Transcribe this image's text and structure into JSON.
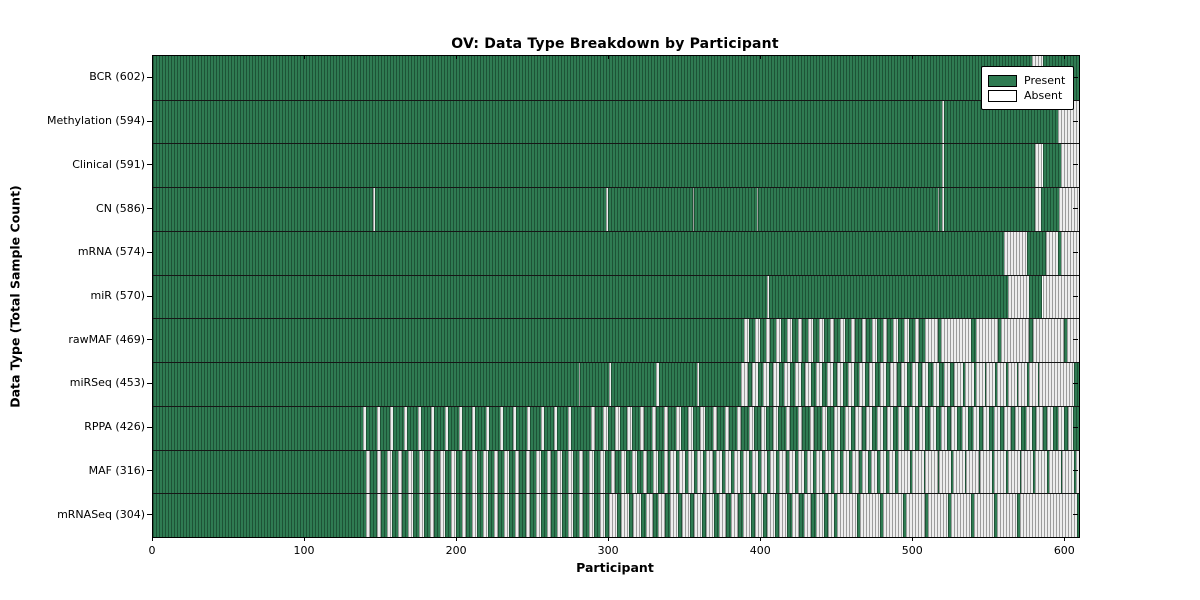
{
  "chart_data": {
    "type": "heatmap",
    "title": "OV: Data Type Breakdown by Participant",
    "xlabel": "Participant",
    "ylabel": "Data Type (Total Sample Count)",
    "x_ticks": [
      0,
      100,
      200,
      300,
      400,
      500,
      600
    ],
    "n_participants": 609,
    "xlim": [
      0,
      609
    ],
    "legend": {
      "present": "Present",
      "absent": "Absent",
      "position": "upper right"
    },
    "colors": {
      "present": "#2f7b52",
      "absent": "#ffffff",
      "frame": "#000000"
    },
    "cell_states": [
      "present",
      "absent"
    ],
    "run_encoding": "runs = alternating run-lengths over participants 0..608, starting with present",
    "rows": [
      {
        "label": "BCR",
        "total": 602,
        "runs": [
          578,
          7,
          24
        ]
      },
      {
        "label": "Methylation",
        "total": 594,
        "runs": [
          519,
          1,
          75,
          14
        ]
      },
      {
        "label": "Clinical",
        "total": 591,
        "runs": [
          519,
          1,
          60,
          5,
          12,
          12
        ]
      },
      {
        "label": "CN",
        "total": 586,
        "runs": [
          145,
          1,
          152,
          1,
          56,
          1,
          41,
          1,
          118,
          1,
          2,
          1,
          60,
          4,
          12,
          13
        ]
      },
      {
        "label": "mRNA",
        "total": 574,
        "runs": [
          560,
          15,
          12,
          8,
          2,
          12
        ]
      },
      {
        "label": "miR",
        "total": 570,
        "runs": [
          404,
          1,
          157,
          14,
          9,
          24
        ]
      },
      {
        "label": "rawMAF",
        "total": 469,
        "runs": [
          389,
          3,
          4,
          3,
          4,
          3,
          4,
          3,
          4,
          3,
          4,
          3,
          4,
          3,
          4,
          3,
          4,
          3,
          4,
          3,
          4,
          3,
          4,
          3,
          4,
          3,
          4,
          3,
          4,
          3,
          4,
          3,
          4,
          3,
          4,
          8,
          2,
          20,
          3,
          15,
          2,
          18,
          3,
          20,
          2,
          8
        ]
      },
      {
        "label": "miRSeq",
        "total": 453,
        "runs": [
          280,
          1,
          19,
          1,
          30,
          2,
          25,
          1,
          28,
          4,
          3,
          4,
          3,
          4,
          3,
          4,
          3,
          4,
          3,
          4,
          3,
          4,
          3,
          4,
          3,
          4,
          3,
          4,
          3,
          4,
          3,
          4,
          3,
          4,
          3,
          4,
          3,
          4,
          3,
          4,
          3,
          4,
          3,
          4,
          3,
          4,
          3,
          4,
          3,
          6,
          1,
          6,
          1,
          6,
          1,
          6,
          1,
          6,
          1,
          6,
          1,
          6,
          1,
          6,
          1,
          23,
          3
        ]
      },
      {
        "label": "RPPA",
        "total": 426,
        "runs": [
          138,
          2,
          7,
          2,
          7,
          2,
          7,
          2,
          7,
          2,
          7,
          2,
          7,
          2,
          7,
          2,
          7,
          2,
          7,
          2,
          7,
          2,
          7,
          2,
          7,
          2,
          7,
          2,
          7,
          2,
          7,
          2,
          13,
          3,
          5,
          3,
          5,
          3,
          5,
          3,
          5,
          3,
          5,
          3,
          5,
          3,
          5,
          3,
          5,
          3,
          5,
          3,
          5,
          3,
          5,
          3,
          5,
          3,
          5,
          3,
          5,
          3,
          5,
          3,
          5,
          3,
          5,
          3,
          5,
          3,
          5,
          3,
          5,
          4,
          3,
          4,
          3,
          4,
          3,
          4,
          3,
          4,
          3,
          4,
          3,
          4,
          3,
          4,
          3,
          4,
          3,
          4,
          3,
          4,
          3,
          4,
          3,
          4,
          3,
          4,
          3,
          4,
          3,
          4,
          3,
          4,
          3,
          4,
          3,
          4,
          3,
          4,
          3,
          4,
          3,
          4,
          3,
          3,
          4
        ]
      },
      {
        "label": "MAF",
        "total": 316,
        "runs": [
          140,
          3,
          4,
          3,
          4,
          3,
          4,
          3,
          4,
          3,
          4,
          3,
          4,
          3,
          4,
          3,
          4,
          3,
          4,
          3,
          4,
          3,
          4,
          3,
          4,
          3,
          4,
          3,
          4,
          3,
          4,
          3,
          4,
          3,
          4,
          3,
          4,
          3,
          4,
          3,
          4,
          3,
          4,
          3,
          4,
          3,
          4,
          3,
          4,
          3,
          4,
          3,
          4,
          3,
          4,
          3,
          4,
          3,
          1,
          4,
          2,
          4,
          2,
          4,
          2,
          4,
          2,
          4,
          2,
          4,
          2,
          4,
          2,
          4,
          2,
          4,
          2,
          4,
          2,
          4,
          2,
          4,
          2,
          4,
          2,
          4,
          2,
          4,
          2,
          4,
          2,
          4,
          2,
          4,
          2,
          4,
          2,
          4,
          2,
          4,
          2,
          4,
          2,
          4,
          2,
          4,
          2,
          4,
          2,
          8,
          1,
          8,
          1,
          8,
          1,
          8,
          1,
          8,
          1,
          8,
          1,
          8,
          1,
          8,
          1,
          8,
          1,
          8,
          1,
          8,
          1,
          8,
          1,
          8,
          1,
          2
        ]
      },
      {
        "label": "mRNASeq",
        "total": 304,
        "runs": [
          140,
          3,
          4,
          3,
          4,
          3,
          4,
          3,
          4,
          3,
          4,
          3,
          4,
          3,
          4,
          3,
          4,
          3,
          4,
          3,
          4,
          3,
          4,
          3,
          4,
          3,
          4,
          3,
          4,
          3,
          4,
          3,
          4,
          3,
          4,
          3,
          4,
          3,
          4,
          3,
          4,
          3,
          4,
          3,
          4,
          3,
          3,
          5,
          3,
          5,
          3,
          5,
          3,
          5,
          3,
          5,
          3,
          5,
          3,
          5,
          3,
          5,
          3,
          5,
          3,
          5,
          3,
          5,
          3,
          5,
          3,
          5,
          3,
          5,
          3,
          5,
          3,
          5,
          3,
          5,
          3,
          5,
          3,
          4,
          2,
          13,
          2,
          13,
          2,
          13,
          2,
          13,
          2,
          13,
          2,
          13,
          2,
          13,
          2,
          13,
          2,
          38,
          1
        ]
      }
    ]
  }
}
